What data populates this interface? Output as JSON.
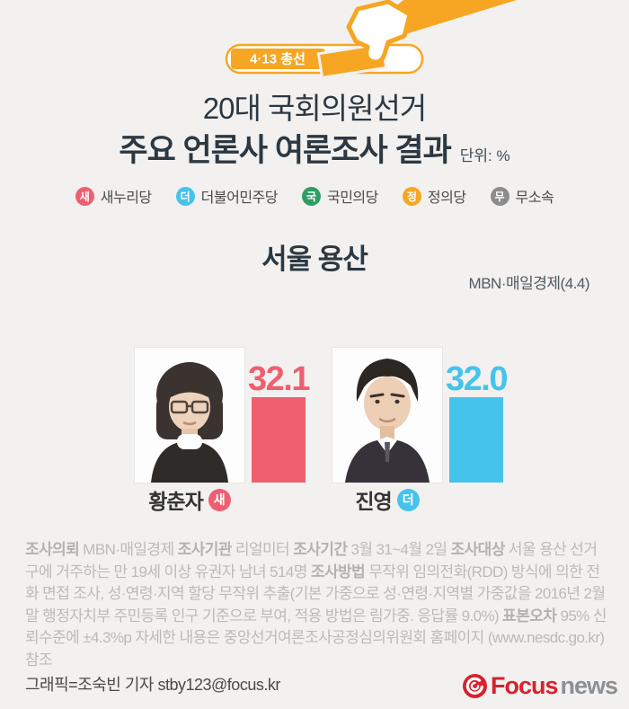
{
  "colors": {
    "background": "#f2f1ef",
    "accent_orange": "#f6a623",
    "title_dark": "#2c3842",
    "saenuri_red": "#ee5f70",
    "minjoo_blue": "#46c3ec",
    "kukmin_green": "#2f9e63",
    "jungui_orange": "#f6a623",
    "musosok_gray": "#8c8c8c",
    "footnote_gray": "#bdbab6",
    "focus_red": "#d5232e",
    "focus_news_gray": "#8d9093"
  },
  "header": {
    "badge": "4·13 총선",
    "title_line1": "20대 국회의원선거",
    "title_line2": "주요 언론사 여론조사 결과",
    "unit": "단위: %"
  },
  "legend": [
    {
      "initial": "새",
      "party": "새누리당",
      "color": "#ee5f70"
    },
    {
      "initial": "더",
      "party": "더불어민주당",
      "color": "#46c3ec"
    },
    {
      "initial": "국",
      "party": "국민의당",
      "color": "#2f9e63"
    },
    {
      "initial": "정",
      "party": "정의당",
      "color": "#f6a623"
    },
    {
      "initial": "무",
      "party": "무소속",
      "color": "#8c8c8c"
    }
  ],
  "region": {
    "title": "서울 용산",
    "source": "MBN·매일경제(4.4)"
  },
  "chart_data": {
    "type": "bar",
    "title": "서울 용산",
    "unit": "%",
    "source": "MBN·매일경제(4.4)",
    "categories": [
      "황춘자",
      "진영"
    ],
    "values": [
      32.1,
      32.0
    ],
    "series": [
      {
        "name": "황춘자",
        "party": "새누리당",
        "party_initial": "새",
        "value": 32.1,
        "color": "#ee5f70"
      },
      {
        "name": "진영",
        "party": "더불어민주당",
        "party_initial": "더",
        "value": 32.0,
        "color": "#46c3ec"
      }
    ],
    "ylim": [
      0,
      40
    ],
    "grid": false,
    "value_labels": true,
    "legend_position": "top"
  },
  "candidates": [
    {
      "name": "황춘자",
      "party_initial": "새",
      "party": "새누리당",
      "value_label": "32.1"
    },
    {
      "name": "진영",
      "party_initial": "더",
      "party": "더불어민주당",
      "value_label": "32.0"
    }
  ],
  "footnote": {
    "segments": [
      {
        "t": "조사의뢰",
        "b": true
      },
      {
        "t": " MBN·매일경제 ",
        "b": false
      },
      {
        "t": "조사기관",
        "b": true
      },
      {
        "t": " 리얼미터 ",
        "b": false
      },
      {
        "t": "조사기간",
        "b": true
      },
      {
        "t": " 3월 31~4월 2일 ",
        "b": false
      },
      {
        "t": "조사대상",
        "b": true
      },
      {
        "t": " 서울 용산 선거구에 거주하는 만 19세 이상 유권자 남녀 514명 ",
        "b": false
      },
      {
        "t": "조사방법",
        "b": true
      },
      {
        "t": " 무작위 임의전화(RDD) 방식에 의한 전화 면접 조사, 성·연령·지역 할당 무작위 추출(기본 가중으로 성·연령·지역별 가중값을 2016년 2월 말 행정자치부 주민등록 인구 기준으로 부여, 적용 방법은 림가중. 응답률 9.0%)  ",
        "b": false
      },
      {
        "t": "표본오차",
        "b": true
      },
      {
        "t": " 95% 신뢰수준에 ±4.3%p 자세한 내용은 중앙선거여론조사공정심의위원회 홈페이지 (www.nesdc.go.kr) 참조",
        "b": false
      }
    ]
  },
  "footer": {
    "credit": "그래픽=조숙빈 기자 stby123@focus.kr",
    "logo_focus": "Focus",
    "logo_news": "news"
  }
}
